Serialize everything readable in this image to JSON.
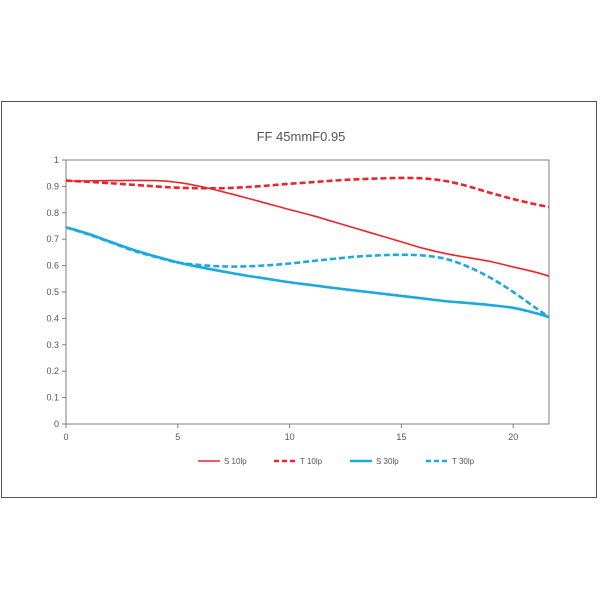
{
  "chart_data": {
    "type": "line",
    "title": "FF 45mmF0.95",
    "xlabel": "",
    "ylabel": "",
    "xlim": [
      0,
      21.6
    ],
    "ylim": [
      0,
      1
    ],
    "xticks": [
      "0",
      "5",
      "10",
      "15",
      "20"
    ],
    "xtick_values": [
      0,
      5,
      10,
      15,
      20
    ],
    "yticks": [
      "0",
      "0.1",
      "0.2",
      "0.3",
      "0.4",
      "0.5",
      "0.6",
      "0.7",
      "0.8",
      "0.9",
      "1"
    ],
    "ytick_values": [
      0,
      0.1,
      0.2,
      0.3,
      0.4,
      0.5,
      0.6,
      0.7,
      0.8,
      0.9,
      1
    ],
    "grid": false,
    "legend": "bottom",
    "series": [
      {
        "name": "S 10lp",
        "color": "#e8262b",
        "style": "solid",
        "x": [
          0,
          2,
          4,
          5,
          6,
          7,
          8,
          9,
          10,
          11,
          12,
          13,
          14,
          15,
          16,
          17,
          18,
          19,
          20,
          21,
          21.6
        ],
        "y": [
          0.92,
          0.922,
          0.922,
          0.915,
          0.9,
          0.88,
          0.858,
          0.835,
          0.812,
          0.79,
          0.765,
          0.74,
          0.715,
          0.69,
          0.665,
          0.645,
          0.63,
          0.615,
          0.595,
          0.575,
          0.56
        ]
      },
      {
        "name": "T 10lp",
        "color": "#e8262b",
        "style": "dashed",
        "x": [
          0,
          2,
          4,
          5,
          6,
          7,
          8,
          9,
          10,
          11,
          12,
          13,
          14,
          15,
          16,
          17,
          18,
          19,
          20,
          21,
          21.6
        ],
        "y": [
          0.922,
          0.912,
          0.9,
          0.895,
          0.893,
          0.893,
          0.897,
          0.903,
          0.91,
          0.916,
          0.922,
          0.927,
          0.93,
          0.932,
          0.93,
          0.92,
          0.9,
          0.875,
          0.852,
          0.832,
          0.822
        ]
      },
      {
        "name": "S 30lp",
        "color": "#1ca9e0",
        "style": "solid",
        "x": [
          0,
          1,
          2,
          3,
          4,
          5,
          6,
          7,
          8,
          9,
          10,
          11,
          12,
          13,
          14,
          15,
          16,
          17,
          18,
          19,
          20,
          21,
          21.6
        ],
        "y": [
          0.745,
          0.72,
          0.69,
          0.66,
          0.635,
          0.612,
          0.594,
          0.578,
          0.563,
          0.55,
          0.537,
          0.526,
          0.515,
          0.505,
          0.495,
          0.485,
          0.475,
          0.465,
          0.458,
          0.45,
          0.44,
          0.42,
          0.405
        ]
      },
      {
        "name": "T 30lp",
        "color": "#1ca9e0",
        "style": "dashed",
        "x": [
          0,
          1,
          2,
          3,
          4,
          5,
          6,
          7,
          8,
          9,
          10,
          11,
          12,
          13,
          14,
          15,
          16,
          17,
          18,
          19,
          20,
          21,
          21.6
        ],
        "y": [
          0.745,
          0.718,
          0.688,
          0.657,
          0.633,
          0.612,
          0.602,
          0.597,
          0.597,
          0.601,
          0.608,
          0.617,
          0.626,
          0.634,
          0.639,
          0.641,
          0.638,
          0.625,
          0.595,
          0.553,
          0.5,
          0.44,
          0.405
        ]
      }
    ]
  }
}
